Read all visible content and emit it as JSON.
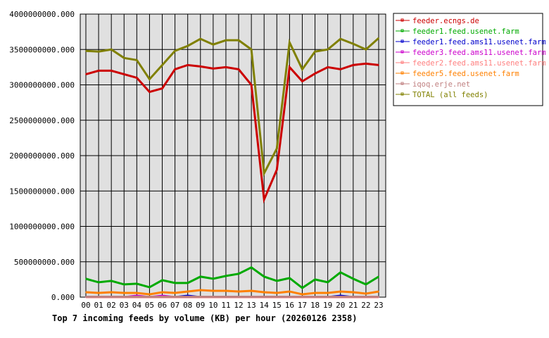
{
  "chart_data": {
    "type": "line",
    "title": "Top 7 incoming feeds by volume (KB) per hour (20260126 2358)",
    "xlabel": "",
    "ylabel": "",
    "categories": [
      "00",
      "01",
      "02",
      "03",
      "04",
      "05",
      "06",
      "07",
      "08",
      "09",
      "10",
      "11",
      "12",
      "13",
      "14",
      "15",
      "16",
      "17",
      "18",
      "19",
      "20",
      "21",
      "22",
      "23"
    ],
    "ylim": [
      0,
      4000000000
    ],
    "yticks": [
      "0.000",
      "500000000.000",
      "1000000000.000",
      "1500000000.000",
      "2000000000.000",
      "2500000000.000",
      "3000000000.000",
      "3500000000.000",
      "4000000000.000"
    ],
    "grid": true,
    "legend_position": "right",
    "background": "#e0e0e0",
    "series": [
      {
        "name": "feeder.ecngs.de",
        "color": "#cc0000",
        "values": [
          3150000000,
          3200000000,
          3200000000,
          3150000000,
          3100000000,
          2900000000,
          2950000000,
          3220000000,
          3280000000,
          3260000000,
          3230000000,
          3250000000,
          3220000000,
          3000000000,
          1380000000,
          1800000000,
          3250000000,
          3050000000,
          3160000000,
          3250000000,
          3220000000,
          3280000000,
          3300000000,
          3280000000
        ]
      },
      {
        "name": "feeder1.feed.usenet.farm",
        "color": "#00aa00",
        "values": [
          260000000,
          210000000,
          230000000,
          180000000,
          190000000,
          140000000,
          240000000,
          200000000,
          200000000,
          290000000,
          260000000,
          300000000,
          330000000,
          420000000,
          290000000,
          230000000,
          270000000,
          130000000,
          250000000,
          210000000,
          350000000,
          260000000,
          180000000,
          290000000
        ]
      },
      {
        "name": "feeder1.feed.ams11.usenet.farm",
        "color": "#0000cc",
        "values": [
          0,
          0,
          0,
          0,
          0,
          0,
          0,
          0,
          20000000,
          0,
          0,
          0,
          0,
          0,
          0,
          0,
          0,
          0,
          0,
          0,
          20000000,
          0,
          0,
          0
        ]
      },
      {
        "name": "feeder3.feed.ams11.usenet.farm",
        "color": "#cc00cc",
        "values": [
          0,
          0,
          0,
          0,
          20000000,
          0,
          20000000,
          0,
          0,
          0,
          0,
          0,
          0,
          0,
          0,
          0,
          0,
          0,
          0,
          0,
          0,
          0,
          0,
          0
        ]
      },
      {
        "name": "feeder2.feed.ams11.usenet.farm",
        "color": "#ff8080",
        "values": [
          0,
          0,
          0,
          0,
          0,
          0,
          0,
          0,
          0,
          0,
          0,
          0,
          0,
          0,
          0,
          0,
          0,
          0,
          0,
          0,
          0,
          0,
          0,
          0
        ]
      },
      {
        "name": "feeder5.feed.usenet.farm",
        "color": "#ff8000",
        "values": [
          70000000,
          60000000,
          70000000,
          60000000,
          60000000,
          40000000,
          70000000,
          60000000,
          80000000,
          100000000,
          90000000,
          90000000,
          80000000,
          90000000,
          70000000,
          60000000,
          80000000,
          40000000,
          60000000,
          60000000,
          80000000,
          70000000,
          50000000,
          80000000
        ]
      },
      {
        "name": "iqoq.erje.net",
        "color": "#c08080",
        "values": [
          5000000,
          5000000,
          5000000,
          5000000,
          5000000,
          5000000,
          5000000,
          5000000,
          5000000,
          5000000,
          5000000,
          5000000,
          5000000,
          5000000,
          5000000,
          5000000,
          5000000,
          5000000,
          5000000,
          5000000,
          5000000,
          5000000,
          5000000,
          5000000
        ]
      },
      {
        "name": "TOTAL (all feeds)",
        "color": "#808000",
        "values": [
          3480000000,
          3470000000,
          3500000000,
          3380000000,
          3350000000,
          3080000000,
          3280000000,
          3480000000,
          3550000000,
          3650000000,
          3570000000,
          3630000000,
          3630000000,
          3500000000,
          1750000000,
          2100000000,
          3600000000,
          3220000000,
          3470000000,
          3500000000,
          3650000000,
          3580000000,
          3500000000,
          3660000000
        ]
      }
    ]
  }
}
